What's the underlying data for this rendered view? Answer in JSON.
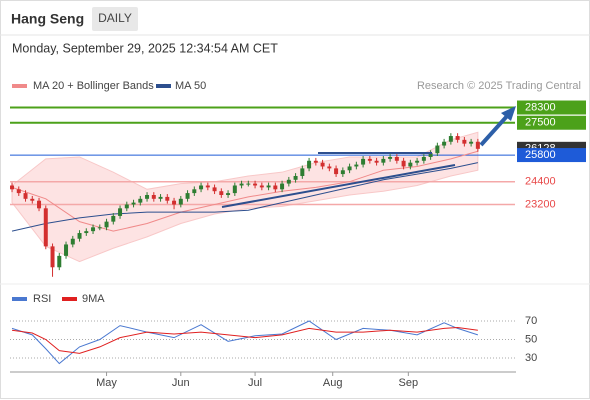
{
  "chart_data": {
    "type": "candlestick",
    "title": "Hang Seng",
    "timeframe": "DAILY",
    "subtitle": "Monday, September 29, 2025 12:34:54 AM CET",
    "credit": "Research © 2025 Trading Central",
    "legend": [
      {
        "name": "MA 20 + Bollinger Bands",
        "color": "#f08a8a"
      },
      {
        "name": "MA 50",
        "color": "#2d4f8e"
      }
    ],
    "up_color": "#2e7d32",
    "down_color": "#d32f2f",
    "xlim": [
      -0.3,
      74.5
    ],
    "ylim": [
      19000,
      29000
    ],
    "xticks": [
      {
        "value": 14,
        "label": "May"
      },
      {
        "value": 25,
        "label": "Jun"
      },
      {
        "value": 36,
        "label": "Jul"
      },
      {
        "value": 47.5,
        "label": "Aug"
      },
      {
        "value": 58.7,
        "label": "Sep"
      }
    ],
    "candles": [
      [
        24200,
        24350,
        23850,
        24000
      ],
      [
        24000,
        24150,
        23650,
        23800
      ],
      [
        23800,
        23950,
        23350,
        23500
      ],
      [
        23500,
        23650,
        23250,
        23400
      ],
      [
        23400,
        23550,
        22850,
        23000
      ],
      [
        23000,
        23150,
        20850,
        21000
      ],
      [
        21000,
        21150,
        19400,
        19900
      ],
      [
        19900,
        20650,
        19750,
        20500
      ],
      [
        20500,
        21250,
        20350,
        21100
      ],
      [
        21100,
        21550,
        20950,
        21400
      ],
      [
        21400,
        21850,
        21250,
        21700
      ],
      [
        21700,
        21950,
        21550,
        21800
      ],
      [
        21800,
        22150,
        21650,
        22000
      ],
      [
        22000,
        22150,
        21850,
        22000
      ],
      [
        22000,
        22450,
        21850,
        22300
      ],
      [
        22300,
        22750,
        22150,
        22600
      ],
      [
        22600,
        23150,
        22450,
        23000
      ],
      [
        23000,
        23350,
        22850,
        23200
      ],
      [
        23200,
        23450,
        23050,
        23300
      ],
      [
        23300,
        23650,
        23150,
        23500
      ],
      [
        23500,
        23850,
        23350,
        23700
      ],
      [
        23700,
        23850,
        23350,
        23500
      ],
      [
        23500,
        23750,
        23350,
        23600
      ],
      [
        23600,
        23750,
        23250,
        23400
      ],
      [
        23400,
        23550,
        22950,
        23200
      ],
      [
        23200,
        23650,
        23050,
        23500
      ],
      [
        23500,
        23950,
        23350,
        23800
      ],
      [
        23800,
        24150,
        23650,
        24000
      ],
      [
        24000,
        24350,
        23850,
        24200
      ],
      [
        24200,
        24350,
        23950,
        24100
      ],
      [
        24100,
        24250,
        23750,
        23900
      ],
      [
        23900,
        24050,
        23550,
        23700
      ],
      [
        23700,
        23950,
        23550,
        23800
      ],
      [
        23800,
        24350,
        23650,
        24200
      ],
      [
        24200,
        24450,
        24050,
        24300
      ],
      [
        24300,
        24450,
        24150,
        24300
      ],
      [
        24300,
        24450,
        24050,
        24200
      ],
      [
        24200,
        24350,
        23950,
        24100
      ],
      [
        24100,
        24350,
        23950,
        24200
      ],
      [
        24200,
        24350,
        23850,
        24000
      ],
      [
        24000,
        24450,
        23850,
        24300
      ],
      [
        24300,
        24650,
        24150,
        24500
      ],
      [
        24500,
        24850,
        24350,
        24700
      ],
      [
        24700,
        25250,
        24550,
        25100
      ],
      [
        25100,
        25650,
        24950,
        25500
      ],
      [
        25500,
        25650,
        25250,
        25400
      ],
      [
        25400,
        25550,
        25050,
        25200
      ],
      [
        25200,
        25350,
        24950,
        25100
      ],
      [
        25100,
        25250,
        24650,
        24800
      ],
      [
        24800,
        25150,
        24650,
        25000
      ],
      [
        25000,
        25350,
        24850,
        25200
      ],
      [
        25200,
        25450,
        25050,
        25300
      ],
      [
        25300,
        25750,
        25150,
        25600
      ],
      [
        25600,
        25750,
        25350,
        25500
      ],
      [
        25500,
        25650,
        25250,
        25400
      ],
      [
        25400,
        25750,
        25250,
        25600
      ],
      [
        25600,
        25850,
        25450,
        25700
      ],
      [
        25700,
        25850,
        25350,
        25500
      ],
      [
        25500,
        25650,
        25050,
        25200
      ],
      [
        25200,
        25550,
        25050,
        25400
      ],
      [
        25400,
        25650,
        25250,
        25500
      ],
      [
        25500,
        25850,
        25350,
        25700
      ],
      [
        25700,
        26050,
        25550,
        25900
      ],
      [
        25900,
        26450,
        25750,
        26300
      ],
      [
        26300,
        26650,
        26150,
        26500
      ],
      [
        26500,
        26950,
        26350,
        26800
      ],
      [
        26800,
        26950,
        26450,
        26600
      ],
      [
        26600,
        26750,
        26250,
        26400
      ],
      [
        26400,
        26650,
        26250,
        26500
      ],
      [
        26500,
        26650,
        25978,
        26128
      ]
    ],
    "lines_x": [
      0,
      5,
      10,
      15,
      20,
      25,
      30,
      35,
      40,
      45,
      50,
      55,
      60,
      65,
      69
    ],
    "band_upper": [
      24200,
      25600,
      25700,
      24900,
      24000,
      24300,
      24400,
      24700,
      24900,
      25400,
      25700,
      25700,
      25700,
      26600,
      27000
    ],
    "band_lower": [
      23300,
      21000,
      20200,
      20900,
      21500,
      22200,
      22700,
      23000,
      23100,
      23400,
      23700,
      23900,
      24200,
      24700,
      25000
    ],
    "ma20": [
      24100,
      23500,
      22300,
      21800,
      22200,
      22800,
      23200,
      23600,
      23900,
      24100,
      24400,
      25000,
      25200,
      25600,
      26000
    ],
    "ma50": [
      21800,
      22200,
      22500,
      22700,
      22800,
      22800,
      22800,
      22900,
      23300,
      23700,
      24100,
      24500,
      24800,
      25100,
      25400
    ],
    "levels": [
      {
        "value": 28300,
        "color": "#4ca11a",
        "box": true
      },
      {
        "value": 27500,
        "color": "#4ca11a",
        "box": true
      },
      {
        "value": 26128,
        "color": "#333333",
        "box": true
      },
      {
        "value": 25800,
        "color": "#1e5bd8",
        "box": true
      },
      {
        "value": 24400,
        "color": "#e84848",
        "box": false
      },
      {
        "value": 23200,
        "color": "#e84848",
        "box": false
      }
    ],
    "rsi": {
      "legend": [
        {
          "name": "RSI",
          "color": "#4a78d0"
        },
        {
          "name": "9MA",
          "color": "#e02020"
        }
      ],
      "ylim": [
        20,
        88
      ],
      "yticks": [
        70,
        50,
        30
      ],
      "x": [
        0,
        3,
        5,
        7,
        10,
        13,
        16,
        20,
        24,
        28,
        32,
        36,
        40,
        44,
        48,
        52,
        56,
        60,
        64,
        66,
        69
      ],
      "rsi": [
        62,
        55,
        40,
        24,
        42,
        50,
        65,
        58,
        52,
        66,
        48,
        54,
        56,
        70,
        50,
        62,
        60,
        55,
        68,
        62,
        55
      ],
      "ma9": [
        60,
        57,
        50,
        38,
        35,
        42,
        52,
        58,
        56,
        58,
        55,
        52,
        55,
        62,
        58,
        58,
        60,
        58,
        62,
        63,
        60
      ]
    }
  }
}
